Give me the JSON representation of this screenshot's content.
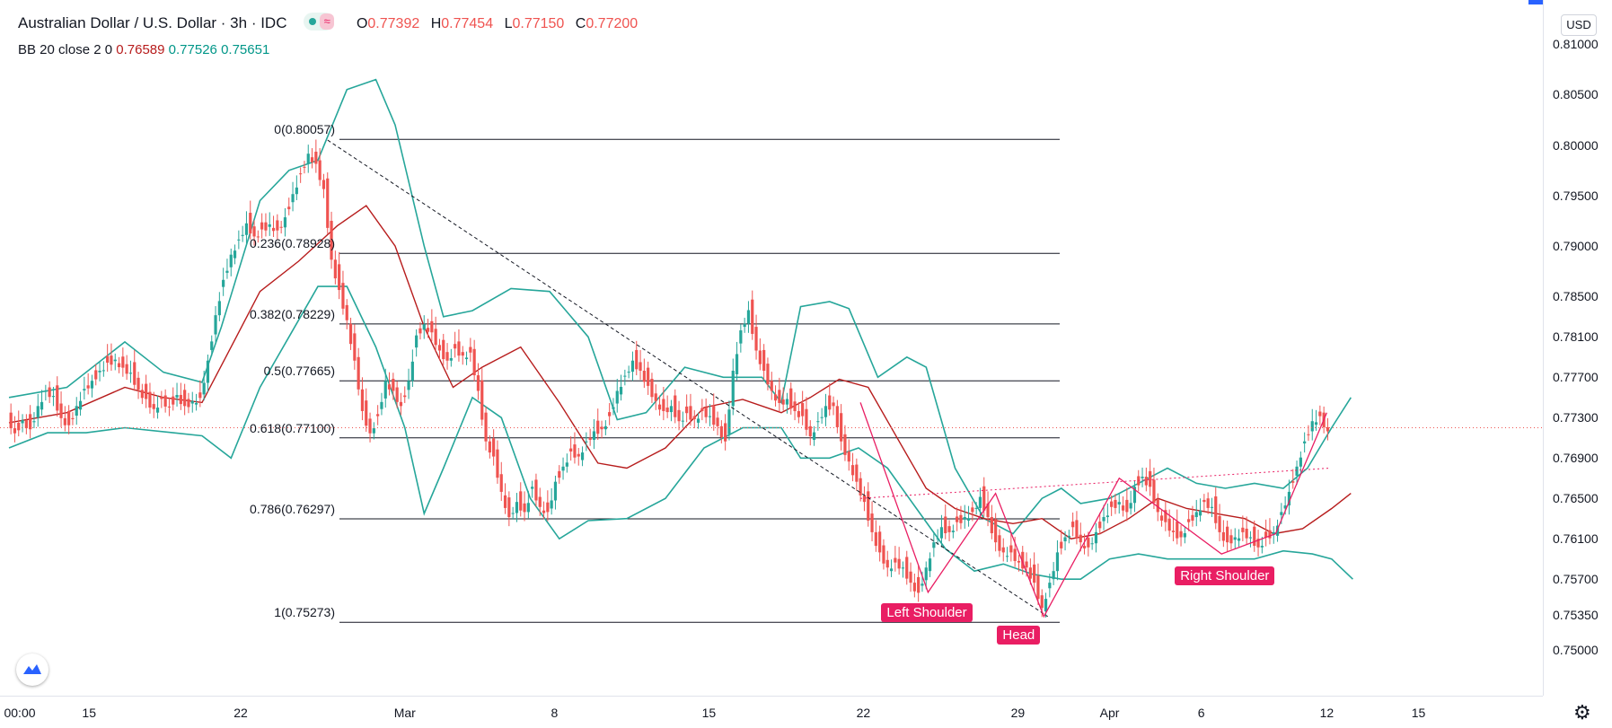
{
  "header": {
    "title": "Australian Dollar / U.S. Dollar · 3h · IDC",
    "wave_glyph": "≈",
    "ohlc": [
      {
        "k": "O",
        "v": "0.77392"
      },
      {
        "k": "H",
        "v": "0.77454"
      },
      {
        "k": "L",
        "v": "0.77150"
      },
      {
        "k": "C",
        "v": "0.77200"
      }
    ]
  },
  "indicator": {
    "name": "BB 20 close 2 0",
    "basis": "0.76589",
    "upper": "0.77526",
    "lower": "0.75651"
  },
  "price_scale": {
    "currency": "USD",
    "labels": [
      "0.81000",
      "0.80500",
      "0.80000",
      "0.79500",
      "0.79000",
      "0.78500",
      "0.78100",
      "0.77700",
      "0.77300",
      "0.76900",
      "0.76500",
      "0.76100",
      "0.75700",
      "0.75350",
      "0.75000"
    ]
  },
  "time_scale": {
    "labels": [
      "00:00",
      "15",
      "22",
      "Mar",
      "8",
      "15",
      "22",
      "29",
      "Apr",
      "6",
      "12",
      "15"
    ]
  },
  "annotations": {
    "left_shoulder": "Left Shoulder",
    "head": "Head",
    "right_shoulder": "Right Shoulder"
  },
  "colors": {
    "up_candle": "#26a69a",
    "down_candle": "#ef5350",
    "bb_band": "#26a69a",
    "bb_basis": "#b71c1c",
    "fib_line": "#131722",
    "pattern": "#e91e63",
    "accent": "#2962ff"
  },
  "icons": [
    "tradingview-logo-icon",
    "settings-gear-icon"
  ],
  "chart_data": {
    "type": "candlestick",
    "symbol": "AUDUSD",
    "interval": "3h",
    "ylim": [
      0.7475,
      0.811
    ],
    "price_ticks": [
      0.81,
      0.805,
      0.8,
      0.795,
      0.79,
      0.785,
      0.781,
      0.777,
      0.773,
      0.769,
      0.765,
      0.761,
      0.757,
      0.7535,
      0.75
    ],
    "fibonacci": [
      {
        "level": "0",
        "price": 0.80057,
        "label": "0(0.80057)"
      },
      {
        "level": "0.236",
        "price": 0.78928,
        "label": "0.236(0.78928)"
      },
      {
        "level": "0.382",
        "price": 0.78229,
        "label": "0.382(0.78229)"
      },
      {
        "level": "0.5",
        "price": 0.77665,
        "label": "0.5(0.77665)"
      },
      {
        "level": "0.618",
        "price": 0.771,
        "label": "0.618(0.77100)"
      },
      {
        "level": "0.786",
        "price": 0.76297,
        "label": "0.786(0.76297)"
      },
      {
        "level": "1",
        "price": 0.75273,
        "label": "1(0.75273)"
      }
    ],
    "price_path": [
      [
        0,
        0.7735
      ],
      [
        8,
        0.7718
      ],
      [
        16,
        0.7731
      ],
      [
        24,
        0.7722
      ],
      [
        32,
        0.7745
      ],
      [
        40,
        0.776
      ],
      [
        48,
        0.7755
      ],
      [
        56,
        0.7733
      ],
      [
        64,
        0.7726
      ],
      [
        72,
        0.7745
      ],
      [
        80,
        0.7762
      ],
      [
        88,
        0.777
      ],
      [
        96,
        0.778
      ],
      [
        104,
        0.7788
      ],
      [
        112,
        0.7791
      ],
      [
        120,
        0.7783
      ],
      [
        128,
        0.7778
      ],
      [
        136,
        0.7761
      ],
      [
        144,
        0.7752
      ],
      [
        152,
        0.7742
      ],
      [
        160,
        0.7752
      ],
      [
        168,
        0.7744
      ],
      [
        176,
        0.7756
      ],
      [
        184,
        0.7745
      ],
      [
        192,
        0.775
      ],
      [
        200,
        0.7753
      ],
      [
        208,
        0.779
      ],
      [
        216,
        0.7835
      ],
      [
        224,
        0.787
      ],
      [
        232,
        0.7895
      ],
      [
        240,
        0.791
      ],
      [
        248,
        0.7926
      ],
      [
        256,
        0.7913
      ],
      [
        264,
        0.792
      ],
      [
        272,
        0.7925
      ],
      [
        280,
        0.7919
      ],
      [
        288,
        0.7932
      ],
      [
        296,
        0.7955
      ],
      [
        304,
        0.7975
      ],
      [
        312,
        0.7995
      ],
      [
        320,
        0.7985
      ],
      [
        328,
        0.796
      ],
      [
        336,
        0.789
      ],
      [
        344,
        0.786
      ],
      [
        352,
        0.783
      ],
      [
        360,
        0.779
      ],
      [
        368,
        0.774
      ],
      [
        376,
        0.7718
      ],
      [
        384,
        0.7735
      ],
      [
        392,
        0.777
      ],
      [
        400,
        0.776
      ],
      [
        408,
        0.7745
      ],
      [
        416,
        0.777
      ],
      [
        424,
        0.7815
      ],
      [
        432,
        0.7826
      ],
      [
        440,
        0.7818
      ],
      [
        448,
        0.78
      ],
      [
        456,
        0.779
      ],
      [
        464,
        0.7802
      ],
      [
        472,
        0.7795
      ],
      [
        480,
        0.7798
      ],
      [
        488,
        0.776
      ],
      [
        496,
        0.771
      ],
      [
        504,
        0.7695
      ],
      [
        512,
        0.766
      ],
      [
        520,
        0.7635
      ],
      [
        528,
        0.765
      ],
      [
        536,
        0.764
      ],
      [
        544,
        0.7665
      ],
      [
        552,
        0.7645
      ],
      [
        560,
        0.764
      ],
      [
        568,
        0.767
      ],
      [
        576,
        0.7685
      ],
      [
        584,
        0.77
      ],
      [
        592,
        0.7695
      ],
      [
        600,
        0.771
      ],
      [
        608,
        0.772
      ],
      [
        616,
        0.7722
      ],
      [
        624,
        0.7735
      ],
      [
        632,
        0.776
      ],
      [
        640,
        0.7775
      ],
      [
        648,
        0.779
      ],
      [
        656,
        0.778
      ],
      [
        664,
        0.7765
      ],
      [
        672,
        0.775
      ],
      [
        680,
        0.774
      ],
      [
        688,
        0.7745
      ],
      [
        696,
        0.773
      ],
      [
        704,
        0.7738
      ],
      [
        712,
        0.7732
      ],
      [
        720,
        0.774
      ],
      [
        728,
        0.7735
      ],
      [
        736,
        0.7725
      ],
      [
        744,
        0.771
      ],
      [
        752,
        0.778
      ],
      [
        760,
        0.782
      ],
      [
        768,
        0.784
      ],
      [
        776,
        0.78
      ],
      [
        784,
        0.778
      ],
      [
        792,
        0.776
      ],
      [
        800,
        0.7748
      ],
      [
        808,
        0.7752
      ],
      [
        816,
        0.774
      ],
      [
        824,
        0.7735
      ],
      [
        832,
        0.7715
      ],
      [
        840,
        0.773
      ],
      [
        848,
        0.7745
      ],
      [
        856,
        0.7745
      ],
      [
        864,
        0.771
      ],
      [
        872,
        0.769
      ],
      [
        880,
        0.767
      ],
      [
        888,
        0.765
      ],
      [
        896,
        0.762
      ],
      [
        904,
        0.76
      ],
      [
        912,
        0.7585
      ],
      [
        920,
        0.759
      ],
      [
        928,
        0.7585
      ],
      [
        936,
        0.757
      ],
      [
        944,
        0.756
      ],
      [
        952,
        0.7585
      ],
      [
        960,
        0.761
      ],
      [
        968,
        0.7625
      ],
      [
        976,
        0.762
      ],
      [
        984,
        0.763
      ],
      [
        992,
        0.7635
      ],
      [
        1000,
        0.764
      ],
      [
        1008,
        0.7655
      ],
      [
        1016,
        0.7635
      ],
      [
        1024,
        0.761
      ],
      [
        1032,
        0.76
      ],
      [
        1040,
        0.76
      ],
      [
        1048,
        0.759
      ],
      [
        1056,
        0.7585
      ],
      [
        1064,
        0.757
      ],
      [
        1072,
        0.7545
      ],
      [
        1080,
        0.757
      ],
      [
        1088,
        0.76
      ],
      [
        1096,
        0.7615
      ],
      [
        1104,
        0.7625
      ],
      [
        1112,
        0.761
      ],
      [
        1120,
        0.7605
      ],
      [
        1128,
        0.762
      ],
      [
        1136,
        0.7635
      ],
      [
        1144,
        0.7645
      ],
      [
        1152,
        0.765
      ],
      [
        1160,
        0.764
      ],
      [
        1168,
        0.7665
      ],
      [
        1176,
        0.7675
      ],
      [
        1184,
        0.7665
      ],
      [
        1192,
        0.764
      ],
      [
        1200,
        0.763
      ],
      [
        1208,
        0.762
      ],
      [
        1216,
        0.7615
      ],
      [
        1224,
        0.763
      ],
      [
        1232,
        0.764
      ],
      [
        1240,
        0.765
      ],
      [
        1248,
        0.7645
      ],
      [
        1256,
        0.762
      ],
      [
        1264,
        0.761
      ],
      [
        1272,
        0.7615
      ],
      [
        1280,
        0.762
      ],
      [
        1288,
        0.7615
      ],
      [
        1296,
        0.7605
      ],
      [
        1304,
        0.7615
      ],
      [
        1312,
        0.762
      ],
      [
        1320,
        0.764
      ],
      [
        1328,
        0.766
      ],
      [
        1336,
        0.7685
      ],
      [
        1344,
        0.771
      ],
      [
        1352,
        0.773
      ],
      [
        1360,
        0.7735
      ],
      [
        1368,
        0.772
      ]
    ],
    "bb_upper": [
      [
        0,
        0.775
      ],
      [
        60,
        0.776
      ],
      [
        120,
        0.7805
      ],
      [
        160,
        0.7775
      ],
      [
        200,
        0.7765
      ],
      [
        220,
        0.782
      ],
      [
        260,
        0.7945
      ],
      [
        290,
        0.7975
      ],
      [
        320,
        0.7985
      ],
      [
        350,
        0.8055
      ],
      [
        380,
        0.8065
      ],
      [
        400,
        0.802
      ],
      [
        430,
        0.79
      ],
      [
        450,
        0.783
      ],
      [
        480,
        0.7836
      ],
      [
        520,
        0.7858
      ],
      [
        560,
        0.7855
      ],
      [
        600,
        0.781
      ],
      [
        630,
        0.7728
      ],
      [
        660,
        0.7735
      ],
      [
        700,
        0.778
      ],
      [
        740,
        0.777
      ],
      [
        780,
        0.777
      ],
      [
        800,
        0.7745
      ],
      [
        820,
        0.784
      ],
      [
        850,
        0.7845
      ],
      [
        870,
        0.7838
      ],
      [
        900,
        0.777
      ],
      [
        930,
        0.779
      ],
      [
        950,
        0.778
      ],
      [
        980,
        0.768
      ],
      [
        1010,
        0.763
      ],
      [
        1040,
        0.7615
      ],
      [
        1070,
        0.765
      ],
      [
        1090,
        0.766
      ],
      [
        1110,
        0.7645
      ],
      [
        1140,
        0.765
      ],
      [
        1170,
        0.7665
      ],
      [
        1200,
        0.768
      ],
      [
        1230,
        0.7665
      ],
      [
        1260,
        0.766
      ],
      [
        1290,
        0.7665
      ],
      [
        1320,
        0.766
      ],
      [
        1345,
        0.768
      ],
      [
        1370,
        0.772
      ],
      [
        1390,
        0.775
      ]
    ],
    "bb_basis": [
      [
        0,
        0.7725
      ],
      [
        60,
        0.7735
      ],
      [
        120,
        0.776
      ],
      [
        160,
        0.775
      ],
      [
        200,
        0.7745
      ],
      [
        230,
        0.78
      ],
      [
        260,
        0.7855
      ],
      [
        300,
        0.7885
      ],
      [
        340,
        0.792
      ],
      [
        370,
        0.794
      ],
      [
        400,
        0.79
      ],
      [
        430,
        0.782
      ],
      [
        460,
        0.776
      ],
      [
        490,
        0.778
      ],
      [
        530,
        0.78
      ],
      [
        570,
        0.7745
      ],
      [
        610,
        0.7685
      ],
      [
        640,
        0.768
      ],
      [
        680,
        0.77
      ],
      [
        720,
        0.774
      ],
      [
        760,
        0.7748
      ],
      [
        800,
        0.7735
      ],
      [
        830,
        0.775
      ],
      [
        860,
        0.7768
      ],
      [
        890,
        0.776
      ],
      [
        920,
        0.771
      ],
      [
        950,
        0.766
      ],
      [
        980,
        0.764
      ],
      [
        1010,
        0.763
      ],
      [
        1040,
        0.7625
      ],
      [
        1070,
        0.763
      ],
      [
        1100,
        0.761
      ],
      [
        1130,
        0.7615
      ],
      [
        1160,
        0.763
      ],
      [
        1190,
        0.765
      ],
      [
        1220,
        0.764
      ],
      [
        1250,
        0.7635
      ],
      [
        1280,
        0.763
      ],
      [
        1310,
        0.7615
      ],
      [
        1340,
        0.762
      ],
      [
        1370,
        0.764
      ],
      [
        1390,
        0.7655
      ]
    ],
    "bb_lower": [
      [
        0,
        0.77
      ],
      [
        40,
        0.7715
      ],
      [
        80,
        0.7715
      ],
      [
        120,
        0.772
      ],
      [
        170,
        0.7715
      ],
      [
        200,
        0.7712
      ],
      [
        230,
        0.769
      ],
      [
        260,
        0.776
      ],
      [
        290,
        0.781
      ],
      [
        320,
        0.786
      ],
      [
        350,
        0.786
      ],
      [
        380,
        0.78
      ],
      [
        410,
        0.772
      ],
      [
        430,
        0.7635
      ],
      [
        450,
        0.768
      ],
      [
        480,
        0.775
      ],
      [
        510,
        0.773
      ],
      [
        540,
        0.765
      ],
      [
        570,
        0.761
      ],
      [
        600,
        0.7628
      ],
      [
        640,
        0.763
      ],
      [
        680,
        0.765
      ],
      [
        720,
        0.77
      ],
      [
        760,
        0.772
      ],
      [
        800,
        0.772
      ],
      [
        820,
        0.769
      ],
      [
        850,
        0.769
      ],
      [
        880,
        0.77
      ],
      [
        910,
        0.768
      ],
      [
        940,
        0.764
      ],
      [
        970,
        0.76
      ],
      [
        1000,
        0.7578
      ],
      [
        1030,
        0.7585
      ],
      [
        1060,
        0.7575
      ],
      [
        1090,
        0.757
      ],
      [
        1110,
        0.757
      ],
      [
        1140,
        0.759
      ],
      [
        1170,
        0.7595
      ],
      [
        1200,
        0.759
      ],
      [
        1230,
        0.759
      ],
      [
        1260,
        0.759
      ],
      [
        1290,
        0.759
      ],
      [
        1320,
        0.7598
      ],
      [
        1350,
        0.7595
      ],
      [
        1370,
        0.759
      ],
      [
        1392,
        0.757
      ]
    ],
    "head_shoulders_zigzag": [
      [
        882,
        0.7745
      ],
      [
        952,
        0.7557
      ],
      [
        1022,
        0.7655
      ],
      [
        1072,
        0.7533
      ],
      [
        1150,
        0.767
      ],
      [
        1256,
        0.7595
      ],
      [
        1312,
        0.7615
      ],
      [
        1365,
        0.7735
      ]
    ],
    "neckline": [
      [
        882,
        0.765
      ],
      [
        1368,
        0.768
      ]
    ],
    "diagonal": [
      [
        330,
        0.8005
      ],
      [
        1076,
        0.7533
      ]
    ],
    "last_price": 0.772,
    "x_ticks": [
      {
        "label": "00:00",
        "x": 0
      },
      {
        "label": "15",
        "x": 83
      },
      {
        "label": "22",
        "x": 240
      },
      {
        "label": "Mar",
        "x": 410
      },
      {
        "label": "8",
        "x": 565
      },
      {
        "label": "15",
        "x": 725
      },
      {
        "label": "22",
        "x": 885
      },
      {
        "label": "29",
        "x": 1045
      },
      {
        "label": "Apr",
        "x": 1140
      },
      {
        "label": "6",
        "x": 1235
      },
      {
        "label": "12",
        "x": 1365
      },
      {
        "label": "15",
        "x": 1460
      }
    ]
  }
}
